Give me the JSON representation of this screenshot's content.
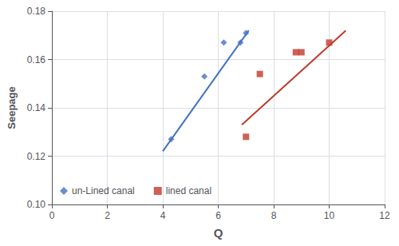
{
  "chart_data": {
    "type": "scatter",
    "xlabel": "Q",
    "ylabel": "Seepage",
    "series": [
      {
        "name": "un-Lined canal",
        "color": "#4472c4",
        "marker": "diamond",
        "x": [
          4.3,
          5.5,
          6.2,
          6.8,
          7.0
        ],
        "values": [
          0.127,
          0.153,
          0.167,
          0.167,
          0.171
        ],
        "trend_x": [
          4.0,
          7.1
        ],
        "trend_values": [
          0.122,
          0.172
        ]
      },
      {
        "name": "lined canal",
        "color": "#c0392b",
        "marker": "square",
        "x": [
          7.0,
          7.5,
          8.8,
          9.0,
          10.0
        ],
        "values": [
          0.128,
          0.154,
          0.163,
          0.163,
          0.167
        ],
        "trend_x": [
          6.85,
          10.6
        ],
        "trend_values": [
          0.133,
          0.172
        ]
      }
    ],
    "xlim": [
      0,
      12
    ],
    "xticks": [
      0,
      2,
      4,
      6,
      8,
      10,
      12
    ],
    "ylim": [
      0.1,
      0.18
    ],
    "yticks": [
      {
        "value": 0.1,
        "label": "0.10"
      },
      0.12,
      0.14,
      0.16,
      0.18
    ],
    "grid": true,
    "legend": "lower left"
  }
}
